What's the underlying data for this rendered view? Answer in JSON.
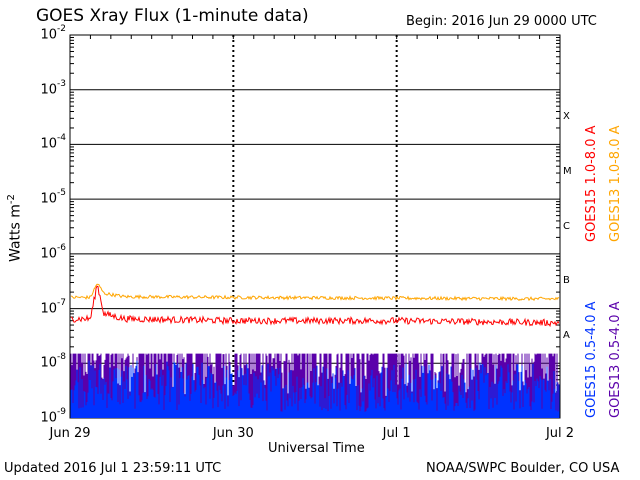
{
  "title": "GOES Xray Flux (1-minute data)",
  "begin": "Begin:  2016 Jun 29 0000 UTC",
  "updated": "Updated 2016 Jul  1 23:59:11 UTC",
  "credit": "NOAA/SWPC Boulder, CO USA",
  "colors": {
    "goes15_long": "#ff0000",
    "goes13_long": "#ffa500",
    "goes15_short": "#0033ff",
    "goes13_short": "#5a00aa"
  },
  "chart_data": {
    "type": "line",
    "title": "GOES Xray Flux (1-minute data)",
    "xlabel": "Universal Time",
    "ylabel": "Watts m",
    "ylabel_sup": "-2",
    "yscale": "log",
    "ylim": [
      1e-09,
      0.01
    ],
    "xlim": [
      "2016-06-29T00:00",
      "2016-07-02T00:00"
    ],
    "x_ticks": [
      "Jun 29",
      "Jun 30",
      "Jul 1",
      "Jul 2"
    ],
    "y_ticks": [
      {
        "base": "10",
        "exp": "-2"
      },
      {
        "base": "10",
        "exp": "-3"
      },
      {
        "base": "10",
        "exp": "-4"
      },
      {
        "base": "10",
        "exp": "-5"
      },
      {
        "base": "10",
        "exp": "-6"
      },
      {
        "base": "10",
        "exp": "-7"
      },
      {
        "base": "10",
        "exp": "-8"
      },
      {
        "base": "10",
        "exp": "-9"
      }
    ],
    "flare_classes": [
      "X",
      "M",
      "C",
      "B",
      "A"
    ],
    "grid": true,
    "series": [
      {
        "name": "GOES15 1.0-8.0 A",
        "x": [
          "2016-06-29T00:00",
          "2016-06-29T03:00",
          "2016-06-29T04:00",
          "2016-06-29T05:00",
          "2016-06-29T08:00",
          "2016-06-30T00:00",
          "2016-07-01T00:00",
          "2016-07-02T00:00"
        ],
        "values": [
          6.5e-08,
          6.5e-08,
          2.8e-07,
          8e-08,
          6.5e-08,
          6e-08,
          6e-08,
          5.5e-08
        ]
      },
      {
        "name": "GOES13 1.0-8.0 A",
        "x": [
          "2016-06-29T00:00",
          "2016-06-29T03:00",
          "2016-06-29T04:00",
          "2016-06-29T05:00",
          "2016-06-29T08:00",
          "2016-06-30T00:00",
          "2016-07-01T00:00",
          "2016-07-02T00:00"
        ],
        "values": [
          1.6e-07,
          1.6e-07,
          2.9e-07,
          1.9e-07,
          1.65e-07,
          1.6e-07,
          1.55e-07,
          1.5e-07
        ]
      },
      {
        "name": "GOES15 0.5-4.0 A",
        "x": [
          "2016-06-29T00:00",
          "2016-06-30T00:00",
          "2016-07-01T00:00",
          "2016-07-02T00:00"
        ],
        "values": [
          1.5e-09,
          1.3e-09,
          1.3e-09,
          1.3e-09
        ]
      },
      {
        "name": "GOES13 0.5-4.0 A",
        "x": [
          "2016-06-29T00:00",
          "2016-06-30T00:00",
          "2016-07-01T00:00",
          "2016-07-02T00:00"
        ],
        "values": [
          3e-09,
          2.5e-09,
          2.5e-09,
          2.5e-09
        ]
      }
    ]
  }
}
